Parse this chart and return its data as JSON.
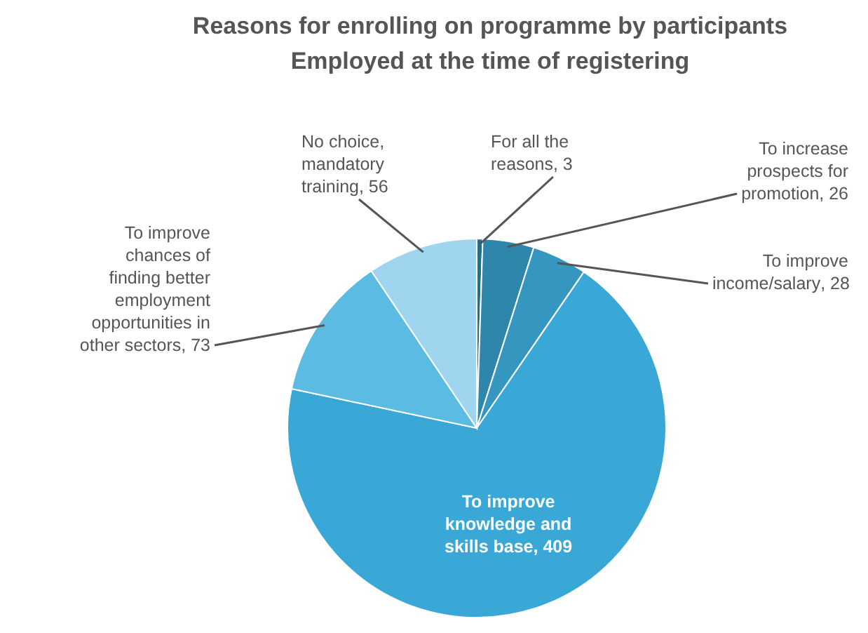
{
  "chart_data": {
    "type": "pie",
    "title": "Reasons for enrolling on programme by participants\nEmployed at the time of registering",
    "categories": [
      "For all the reasons",
      "To increase prospects for promotion",
      "To improve income/salary",
      "To improve knowledge and skills base",
      "To improve chances of finding better employment opportunities in other sectors",
      "No choice, mandatory training"
    ],
    "values": [
      3,
      26,
      28,
      409,
      73,
      56
    ],
    "colors": [
      "#1f6f8f",
      "#2e86ab",
      "#3597c0",
      "#3aa8d6",
      "#5cbbe2",
      "#9fd5ee"
    ],
    "value_labels": [
      ", 3",
      ", 26",
      ", 28",
      ", 409",
      ", 73",
      ", 56"
    ],
    "legend": false
  }
}
